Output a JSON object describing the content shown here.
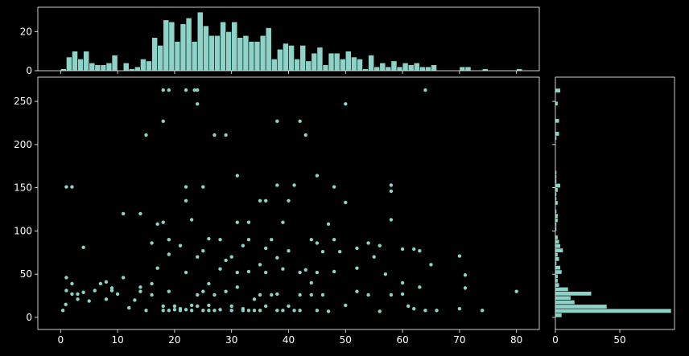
{
  "chart_data": [
    {
      "type": "scatter",
      "color": "#8dd3c7",
      "xlim": [
        -4,
        84
      ],
      "xticks": [
        0,
        10,
        20,
        30,
        40,
        50,
        60,
        70,
        80
      ],
      "ylim": [
        -14,
        278
      ],
      "yticks": [
        0,
        50,
        100,
        150,
        200,
        250
      ],
      "x": [
        18,
        19,
        22,
        24,
        23.5,
        64,
        24,
        50,
        18,
        38,
        42,
        15,
        27,
        29,
        43,
        31,
        45,
        1,
        2,
        22,
        25,
        38,
        41,
        48,
        58,
        58,
        22,
        35,
        36,
        40,
        50,
        11,
        14,
        18,
        17,
        23,
        31,
        33,
        39,
        47,
        58,
        4,
        16,
        19,
        21,
        26,
        28,
        32,
        33,
        36,
        37,
        44,
        45,
        48,
        52,
        54,
        56,
        60,
        62,
        63,
        65,
        70,
        71,
        71,
        80,
        74,
        70,
        66,
        64,
        60,
        61,
        62,
        58,
        56,
        54,
        52,
        50,
        49,
        48,
        47,
        46,
        45,
        44,
        42,
        40,
        39,
        38,
        37,
        36,
        35,
        34,
        33,
        32,
        31,
        30,
        29,
        28,
        27,
        26,
        25,
        24,
        23,
        22,
        21,
        20,
        19,
        18,
        17,
        16,
        15,
        14,
        13,
        12,
        11,
        10,
        9,
        8,
        7,
        6,
        5,
        4,
        3,
        2,
        1,
        0.9,
        0.4,
        3,
        2,
        1,
        8,
        9,
        14,
        16,
        19,
        24,
        25,
        29,
        30,
        35,
        38,
        40,
        42,
        43,
        46,
        52,
        55,
        57,
        60,
        63,
        44,
        31,
        26,
        27,
        28,
        30,
        32,
        33,
        35,
        36,
        39,
        41,
        45,
        25,
        22,
        21,
        19,
        20,
        18,
        24,
        23,
        26,
        34,
        38,
        42
      ],
      "values": [
        263,
        263,
        263,
        263,
        263,
        263,
        247,
        247,
        227,
        227,
        227,
        211,
        211,
        211,
        211,
        164,
        164,
        151,
        151,
        151,
        151,
        153,
        153,
        151,
        153,
        146,
        135,
        135,
        135,
        135,
        133,
        120,
        120,
        110,
        108,
        113,
        110,
        110,
        110,
        108,
        113,
        81,
        86,
        90,
        83,
        91,
        90,
        83,
        90,
        80,
        90,
        90,
        86,
        90,
        80,
        86,
        83,
        79,
        79,
        77,
        61,
        71,
        49,
        34,
        30,
        8,
        10,
        8,
        8,
        27,
        13,
        10,
        26,
        7,
        26,
        30,
        14,
        76,
        53,
        7,
        26,
        52,
        26,
        26,
        13,
        56,
        27,
        26,
        52,
        26,
        21,
        53,
        8,
        52,
        13,
        30,
        56,
        26,
        8,
        30,
        13,
        8,
        52,
        8,
        9,
        30,
        8,
        57,
        26,
        8,
        30,
        20,
        11,
        46,
        27,
        31,
        21,
        39,
        31,
        19,
        29,
        27,
        39,
        31,
        15,
        8,
        21,
        27,
        46,
        41,
        34,
        35,
        39,
        73,
        70,
        77,
        66,
        70,
        61,
        69,
        77,
        52,
        55,
        76,
        57,
        70,
        50,
        40,
        35,
        40,
        35,
        39,
        8,
        9,
        8,
        10,
        8,
        8,
        13,
        8,
        8,
        8,
        8,
        9,
        10,
        8,
        13,
        13,
        26,
        14,
        14,
        8,
        8,
        8
      ]
    },
    {
      "type": "histogram",
      "color": "#8dd3c7",
      "xlim": [
        -4,
        84
      ],
      "xticks": [
        0,
        10,
        20,
        30,
        40,
        50,
        60,
        70,
        80
      ],
      "show_xtick_labels": false,
      "ylim": [
        0,
        32.5
      ],
      "yticks": [
        0,
        20
      ],
      "bins": [
        0,
        1,
        2,
        3,
        4,
        5,
        6,
        7,
        8,
        9,
        10,
        11,
        12,
        13,
        14,
        15,
        16,
        17,
        18,
        19,
        20,
        21,
        22,
        23,
        24,
        25,
        26,
        27,
        28,
        29,
        30,
        31,
        32,
        33,
        34,
        35,
        36,
        37,
        38,
        39,
        40,
        41,
        42,
        43,
        44,
        45,
        46,
        47,
        48,
        49,
        50,
        51,
        52,
        53,
        54,
        55,
        56,
        57,
        58,
        59,
        60,
        61,
        62,
        63,
        64,
        65,
        66,
        67,
        68,
        69,
        70,
        71,
        72,
        73,
        74,
        75,
        76,
        77,
        78,
        79,
        80,
        81
      ],
      "values": [
        1,
        7,
        10,
        6,
        10,
        4,
        3,
        3,
        4,
        8,
        0,
        4,
        1,
        2,
        6,
        5,
        17,
        13,
        26,
        25,
        15,
        24,
        27,
        15,
        30,
        23,
        18,
        18,
        25,
        20,
        25,
        17,
        18,
        15,
        15,
        18,
        22,
        6,
        11,
        14,
        13,
        6,
        13,
        5,
        9,
        12,
        3,
        9,
        9,
        6,
        10,
        7,
        6,
        1,
        8,
        2,
        4,
        2,
        5,
        2,
        4,
        3,
        4,
        2,
        2,
        3,
        0,
        0,
        0,
        0,
        2,
        2,
        0,
        0,
        1,
        0,
        0,
        0,
        0,
        0,
        1
      ]
    },
    {
      "type": "histogram",
      "orientation": "horizontal",
      "color": "#8dd3c7",
      "xlim": [
        0,
        92.5
      ],
      "xticks": [
        0,
        50
      ],
      "ylim": [
        -14,
        278
      ],
      "yticks": [
        0,
        50,
        100,
        150,
        200,
        250
      ],
      "show_ytick_labels": false,
      "bins": [
        0,
        5,
        10,
        15,
        20,
        25,
        30,
        35,
        40,
        45,
        50,
        55,
        60,
        65,
        70,
        75,
        80,
        85,
        90,
        95,
        100,
        105,
        110,
        115,
        120,
        125,
        130,
        135,
        140,
        145,
        150,
        155,
        160,
        165,
        170,
        175,
        180,
        185,
        190,
        195,
        200,
        205,
        210,
        215,
        220,
        225,
        230,
        235,
        240,
        245,
        250,
        255,
        260,
        265
      ],
      "values": [
        5,
        90,
        40,
        15,
        12,
        28,
        10,
        3,
        2,
        2,
        5,
        4,
        1,
        3,
        2,
        6,
        4,
        3,
        2,
        0,
        1,
        1,
        2,
        2,
        1,
        0,
        2,
        1,
        1,
        2,
        4,
        1,
        1,
        1,
        0,
        0,
        0,
        0,
        0,
        0,
        0,
        1,
        3,
        0,
        0,
        3,
        0,
        0,
        0,
        2,
        0,
        0,
        4
      ]
    }
  ]
}
